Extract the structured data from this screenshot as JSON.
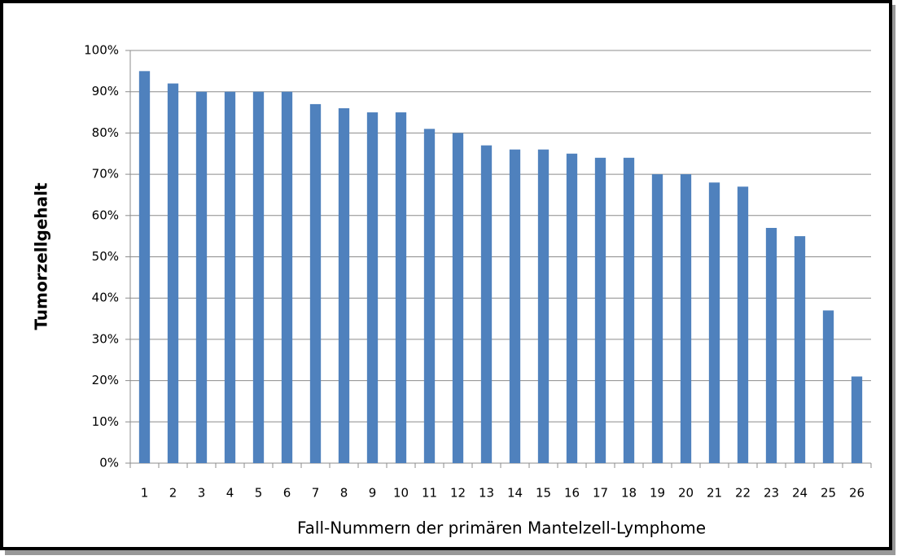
{
  "chart_data": {
    "type": "bar",
    "x_label": "Fall-Nummern der primären Mantelzell-Lymphome",
    "y_label": "Tumorzellgehalt",
    "categories": [
      "1",
      "2",
      "3",
      "4",
      "5",
      "6",
      "7",
      "8",
      "9",
      "10",
      "11",
      "12",
      "13",
      "14",
      "15",
      "16",
      "17",
      "18",
      "19",
      "20",
      "21",
      "22",
      "23",
      "24",
      "25",
      "26"
    ],
    "values": [
      95,
      92,
      90,
      90,
      90,
      90,
      87,
      86,
      85,
      85,
      81,
      80,
      77,
      76,
      76,
      75,
      74,
      74,
      70,
      70,
      68,
      67,
      57,
      55,
      37,
      21
    ],
    "color": "#4f81bd",
    "ylim": [
      0,
      100
    ],
    "yticks": [
      {
        "value": 0,
        "label": "0%"
      },
      {
        "value": 10,
        "label": "10%"
      },
      {
        "value": 20,
        "label": "20%"
      },
      {
        "value": 30,
        "label": "30%"
      },
      {
        "value": 40,
        "label": "40%"
      },
      {
        "value": 50,
        "label": "50%"
      },
      {
        "value": 60,
        "label": "60%"
      },
      {
        "value": 70,
        "label": "70%"
      },
      {
        "value": 80,
        "label": "80%"
      },
      {
        "value": 90,
        "label": "90%"
      },
      {
        "value": 100,
        "label": "100%"
      }
    ],
    "grid": true
  }
}
